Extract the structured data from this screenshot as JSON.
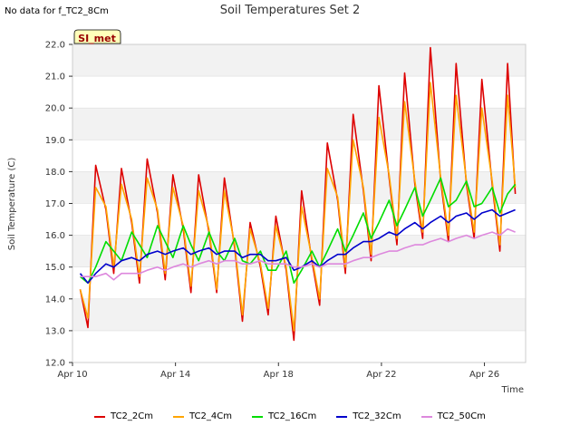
{
  "header": {
    "nodata_text": "No data for f_TC2_8Cm",
    "title": "Soil Temperatures Set 2",
    "site_badge": "SI_met"
  },
  "colors": {
    "TC2_2Cm": "#dd0000",
    "TC2_4Cm": "#ffa500",
    "TC2_16Cm": "#00dd00",
    "TC2_32Cm": "#0000cc",
    "TC2_50Cm": "#dd88dd",
    "band": "#f2f2f2",
    "badge_bg": "#ffffbb",
    "badge_text": "#990000"
  },
  "chart_data": {
    "type": "line",
    "title": "Soil Temperatures Set 2",
    "xlabel": "Time",
    "ylabel": "Soil Temperature (C)",
    "xlim": [
      10.0,
      27.6
    ],
    "ylim": [
      12.0,
      22.0
    ],
    "x_ticks": [
      {
        "value": 10,
        "label": "Apr 10"
      },
      {
        "value": 14,
        "label": "Apr 14"
      },
      {
        "value": 18,
        "label": "Apr 18"
      },
      {
        "value": 22,
        "label": "Apr 22"
      },
      {
        "value": 26,
        "label": "Apr 26"
      }
    ],
    "y_ticks": [
      "12.0",
      "13.0",
      "14.0",
      "15.0",
      "16.0",
      "17.0",
      "18.0",
      "19.0",
      "20.0",
      "21.0",
      "22.0"
    ],
    "legend_position": "bottom",
    "grid": true,
    "series": [
      {
        "name": "TC2_2Cm",
        "color": "#dd0000",
        "points": [
          [
            10.3,
            14.3
          ],
          [
            10.6,
            13.1
          ],
          [
            10.9,
            18.2
          ],
          [
            11.3,
            16.8
          ],
          [
            11.6,
            14.8
          ],
          [
            11.9,
            18.1
          ],
          [
            12.3,
            16.4
          ],
          [
            12.6,
            14.5
          ],
          [
            12.9,
            18.4
          ],
          [
            13.3,
            16.7
          ],
          [
            13.6,
            14.6
          ],
          [
            13.9,
            17.9
          ],
          [
            14.3,
            16.2
          ],
          [
            14.6,
            14.2
          ],
          [
            14.9,
            17.9
          ],
          [
            15.3,
            16.1
          ],
          [
            15.6,
            14.2
          ],
          [
            15.9,
            17.8
          ],
          [
            16.3,
            15.6
          ],
          [
            16.6,
            13.3
          ],
          [
            16.9,
            16.4
          ],
          [
            17.3,
            15.0
          ],
          [
            17.6,
            13.5
          ],
          [
            17.9,
            16.6
          ],
          [
            18.3,
            14.9
          ],
          [
            18.6,
            12.7
          ],
          [
            18.9,
            17.4
          ],
          [
            19.3,
            15.2
          ],
          [
            19.6,
            13.8
          ],
          [
            19.9,
            18.9
          ],
          [
            20.3,
            17.1
          ],
          [
            20.6,
            14.8
          ],
          [
            20.9,
            19.8
          ],
          [
            21.3,
            17.4
          ],
          [
            21.6,
            15.2
          ],
          [
            21.9,
            20.7
          ],
          [
            22.3,
            17.8
          ],
          [
            22.6,
            15.7
          ],
          [
            22.9,
            21.1
          ],
          [
            23.3,
            17.6
          ],
          [
            23.6,
            15.9
          ],
          [
            23.9,
            21.9
          ],
          [
            24.3,
            17.7
          ],
          [
            24.6,
            15.8
          ],
          [
            24.9,
            21.4
          ],
          [
            25.3,
            17.6
          ],
          [
            25.6,
            15.9
          ],
          [
            25.9,
            20.9
          ],
          [
            26.3,
            17.6
          ],
          [
            26.6,
            15.5
          ],
          [
            26.9,
            21.4
          ],
          [
            27.2,
            17.3
          ]
        ]
      },
      {
        "name": "TC2_4Cm",
        "color": "#ffa500",
        "points": [
          [
            10.3,
            14.3
          ],
          [
            10.6,
            13.4
          ],
          [
            10.9,
            17.5
          ],
          [
            11.3,
            16.9
          ],
          [
            11.6,
            15.0
          ],
          [
            11.9,
            17.6
          ],
          [
            12.3,
            16.5
          ],
          [
            12.6,
            14.7
          ],
          [
            12.9,
            17.8
          ],
          [
            13.3,
            16.8
          ],
          [
            13.6,
            14.8
          ],
          [
            13.9,
            17.5
          ],
          [
            14.3,
            16.3
          ],
          [
            14.6,
            14.4
          ],
          [
            14.9,
            17.4
          ],
          [
            15.3,
            16.2
          ],
          [
            15.6,
            14.3
          ],
          [
            15.9,
            17.4
          ],
          [
            16.3,
            15.7
          ],
          [
            16.6,
            13.5
          ],
          [
            16.9,
            16.2
          ],
          [
            17.3,
            15.1
          ],
          [
            17.6,
            13.7
          ],
          [
            17.9,
            16.3
          ],
          [
            18.3,
            15.0
          ],
          [
            18.6,
            13.0
          ],
          [
            18.9,
            16.9
          ],
          [
            19.3,
            15.3
          ],
          [
            19.6,
            14.0
          ],
          [
            19.9,
            18.1
          ],
          [
            20.3,
            17.2
          ],
          [
            20.6,
            15.0
          ],
          [
            20.9,
            19.0
          ],
          [
            21.3,
            17.5
          ],
          [
            21.6,
            15.4
          ],
          [
            21.9,
            19.7
          ],
          [
            22.3,
            17.9
          ],
          [
            22.6,
            15.9
          ],
          [
            22.9,
            20.2
          ],
          [
            23.3,
            17.7
          ],
          [
            23.6,
            16.1
          ],
          [
            23.9,
            20.8
          ],
          [
            24.3,
            17.8
          ],
          [
            24.6,
            16.0
          ],
          [
            24.9,
            20.4
          ],
          [
            25.3,
            17.7
          ],
          [
            25.6,
            16.1
          ],
          [
            25.9,
            20.0
          ],
          [
            26.3,
            17.7
          ],
          [
            26.6,
            15.7
          ],
          [
            26.9,
            20.4
          ],
          [
            27.2,
            17.5
          ]
        ]
      },
      {
        "name": "TC2_16Cm",
        "color": "#00dd00",
        "points": [
          [
            10.3,
            14.7
          ],
          [
            10.6,
            14.5
          ],
          [
            10.9,
            15.0
          ],
          [
            11.3,
            15.8
          ],
          [
            11.6,
            15.5
          ],
          [
            11.9,
            15.2
          ],
          [
            12.3,
            16.1
          ],
          [
            12.6,
            15.7
          ],
          [
            12.9,
            15.3
          ],
          [
            13.3,
            16.3
          ],
          [
            13.6,
            15.8
          ],
          [
            13.9,
            15.3
          ],
          [
            14.3,
            16.3
          ],
          [
            14.6,
            15.7
          ],
          [
            14.9,
            15.2
          ],
          [
            15.3,
            16.1
          ],
          [
            15.6,
            15.5
          ],
          [
            15.9,
            15.2
          ],
          [
            16.3,
            15.9
          ],
          [
            16.6,
            15.2
          ],
          [
            16.9,
            15.1
          ],
          [
            17.3,
            15.5
          ],
          [
            17.6,
            14.9
          ],
          [
            17.9,
            14.9
          ],
          [
            18.3,
            15.5
          ],
          [
            18.6,
            14.5
          ],
          [
            18.9,
            14.9
          ],
          [
            19.3,
            15.5
          ],
          [
            19.6,
            15.0
          ],
          [
            19.9,
            15.5
          ],
          [
            20.3,
            16.2
          ],
          [
            20.6,
            15.5
          ],
          [
            20.9,
            16.0
          ],
          [
            21.3,
            16.7
          ],
          [
            21.6,
            15.9
          ],
          [
            21.9,
            16.4
          ],
          [
            22.3,
            17.1
          ],
          [
            22.6,
            16.3
          ],
          [
            22.9,
            16.8
          ],
          [
            23.3,
            17.5
          ],
          [
            23.6,
            16.6
          ],
          [
            23.9,
            17.1
          ],
          [
            24.3,
            17.8
          ],
          [
            24.6,
            16.9
          ],
          [
            24.9,
            17.1
          ],
          [
            25.3,
            17.7
          ],
          [
            25.6,
            16.9
          ],
          [
            25.9,
            17.0
          ],
          [
            26.3,
            17.5
          ],
          [
            26.6,
            16.7
          ],
          [
            26.9,
            17.3
          ],
          [
            27.2,
            17.6
          ]
        ]
      },
      {
        "name": "TC2_32Cm",
        "color": "#0000cc",
        "points": [
          [
            10.3,
            14.8
          ],
          [
            10.6,
            14.5
          ],
          [
            10.9,
            14.8
          ],
          [
            11.3,
            15.1
          ],
          [
            11.6,
            15.0
          ],
          [
            11.9,
            15.2
          ],
          [
            12.3,
            15.3
          ],
          [
            12.6,
            15.2
          ],
          [
            12.9,
            15.4
          ],
          [
            13.3,
            15.5
          ],
          [
            13.6,
            15.4
          ],
          [
            13.9,
            15.5
          ],
          [
            14.3,
            15.6
          ],
          [
            14.6,
            15.4
          ],
          [
            14.9,
            15.5
          ],
          [
            15.3,
            15.6
          ],
          [
            15.6,
            15.4
          ],
          [
            15.9,
            15.5
          ],
          [
            16.3,
            15.5
          ],
          [
            16.6,
            15.3
          ],
          [
            16.9,
            15.4
          ],
          [
            17.3,
            15.4
          ],
          [
            17.6,
            15.2
          ],
          [
            17.9,
            15.2
          ],
          [
            18.3,
            15.3
          ],
          [
            18.6,
            14.9
          ],
          [
            18.9,
            15.0
          ],
          [
            19.3,
            15.2
          ],
          [
            19.6,
            15.0
          ],
          [
            19.9,
            15.2
          ],
          [
            20.3,
            15.4
          ],
          [
            20.6,
            15.4
          ],
          [
            20.9,
            15.6
          ],
          [
            21.3,
            15.8
          ],
          [
            21.6,
            15.8
          ],
          [
            21.9,
            15.9
          ],
          [
            22.3,
            16.1
          ],
          [
            22.6,
            16.0
          ],
          [
            22.9,
            16.2
          ],
          [
            23.3,
            16.4
          ],
          [
            23.6,
            16.2
          ],
          [
            23.9,
            16.4
          ],
          [
            24.3,
            16.6
          ],
          [
            24.6,
            16.4
          ],
          [
            24.9,
            16.6
          ],
          [
            25.3,
            16.7
          ],
          [
            25.6,
            16.5
          ],
          [
            25.9,
            16.7
          ],
          [
            26.3,
            16.8
          ],
          [
            26.6,
            16.6
          ],
          [
            26.9,
            16.7
          ],
          [
            27.2,
            16.8
          ]
        ]
      },
      {
        "name": "TC2_50Cm",
        "color": "#dd88dd",
        "points": [
          [
            10.3,
            14.7
          ],
          [
            10.6,
            14.7
          ],
          [
            10.9,
            14.7
          ],
          [
            11.3,
            14.8
          ],
          [
            11.6,
            14.6
          ],
          [
            11.9,
            14.8
          ],
          [
            12.3,
            14.8
          ],
          [
            12.6,
            14.8
          ],
          [
            12.9,
            14.9
          ],
          [
            13.3,
            15.0
          ],
          [
            13.6,
            14.9
          ],
          [
            13.9,
            15.0
          ],
          [
            14.3,
            15.1
          ],
          [
            14.6,
            15.0
          ],
          [
            14.9,
            15.1
          ],
          [
            15.3,
            15.2
          ],
          [
            15.6,
            15.1
          ],
          [
            15.9,
            15.2
          ],
          [
            16.3,
            15.2
          ],
          [
            16.6,
            15.1
          ],
          [
            16.9,
            15.1
          ],
          [
            17.3,
            15.2
          ],
          [
            17.6,
            15.1
          ],
          [
            17.9,
            15.1
          ],
          [
            18.3,
            15.1
          ],
          [
            18.6,
            15.0
          ],
          [
            18.9,
            15.0
          ],
          [
            19.3,
            15.1
          ],
          [
            19.6,
            15.0
          ],
          [
            19.9,
            15.1
          ],
          [
            20.3,
            15.1
          ],
          [
            20.6,
            15.1
          ],
          [
            20.9,
            15.2
          ],
          [
            21.3,
            15.3
          ],
          [
            21.6,
            15.3
          ],
          [
            21.9,
            15.4
          ],
          [
            22.3,
            15.5
          ],
          [
            22.6,
            15.5
          ],
          [
            22.9,
            15.6
          ],
          [
            23.3,
            15.7
          ],
          [
            23.6,
            15.7
          ],
          [
            23.9,
            15.8
          ],
          [
            24.3,
            15.9
          ],
          [
            24.6,
            15.8
          ],
          [
            24.9,
            15.9
          ],
          [
            25.3,
            16.0
          ],
          [
            25.6,
            15.9
          ],
          [
            25.9,
            16.0
          ],
          [
            26.3,
            16.1
          ],
          [
            26.6,
            16.0
          ],
          [
            26.9,
            16.2
          ],
          [
            27.2,
            16.1
          ]
        ]
      }
    ]
  }
}
